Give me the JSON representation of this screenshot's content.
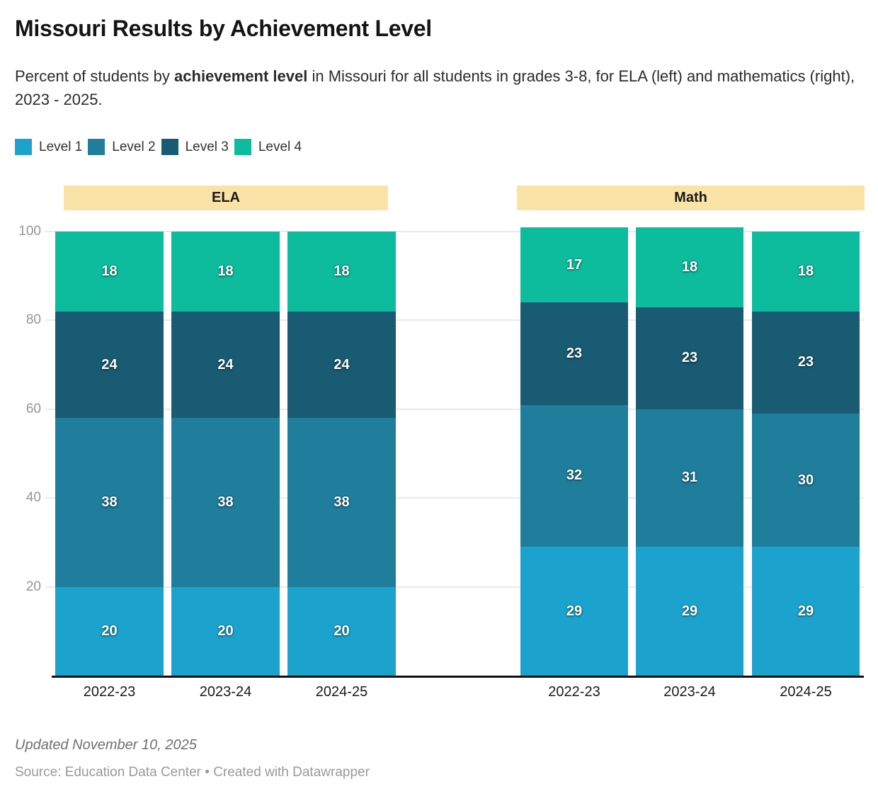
{
  "header": {
    "title": "Missouri Results by Achievement Level",
    "subtitle_prefix": "Percent of students by ",
    "subtitle_bold": "achievement level",
    "subtitle_suffix": " in Missouri for all students in grades 3-8, for ELA (left) and mathematics (right), 2023 - 2025."
  },
  "legend": [
    {
      "label": "Level 1",
      "color": "#1CA3CD"
    },
    {
      "label": "Level 2",
      "color": "#1F7E9C"
    },
    {
      "label": "Level 3",
      "color": "#195B73"
    },
    {
      "label": "Level 4",
      "color": "#0CBC9D"
    }
  ],
  "chart_data": {
    "type": "bar",
    "stacked": true,
    "unit": "percent of students",
    "ylim": [
      0,
      100
    ],
    "yticks": [
      20,
      40,
      60,
      80,
      100
    ],
    "grid": true,
    "group_band_color": "#FAE3A6",
    "legend_position": "top-left",
    "groups": [
      {
        "label": "ELA",
        "categories": [
          "2022-23",
          "2023-24",
          "2024-25"
        ],
        "series": [
          {
            "name": "Level 1",
            "color": "#1CA3CD",
            "values": [
              20,
              20,
              20
            ]
          },
          {
            "name": "Level 2",
            "color": "#1F7E9C",
            "values": [
              38,
              38,
              38
            ]
          },
          {
            "name": "Level 3",
            "color": "#195B73",
            "values": [
              24,
              24,
              24
            ]
          },
          {
            "name": "Level 4",
            "color": "#0CBC9D",
            "values": [
              18,
              18,
              18
            ]
          }
        ]
      },
      {
        "label": "Math",
        "categories": [
          "2022-23",
          "2023-24",
          "2024-25"
        ],
        "series": [
          {
            "name": "Level 1",
            "color": "#1CA3CD",
            "values": [
              29,
              29,
              29
            ]
          },
          {
            "name": "Level 2",
            "color": "#1F7E9C",
            "values": [
              32,
              31,
              30
            ]
          },
          {
            "name": "Level 3",
            "color": "#195B73",
            "values": [
              23,
              23,
              23
            ]
          },
          {
            "name": "Level 4",
            "color": "#0CBC9D",
            "values": [
              17,
              18,
              18
            ]
          }
        ]
      }
    ]
  },
  "footer": {
    "updated": "Updated November 10, 2025",
    "source": "Source: Education Data Center • Created with Datawrapper"
  }
}
